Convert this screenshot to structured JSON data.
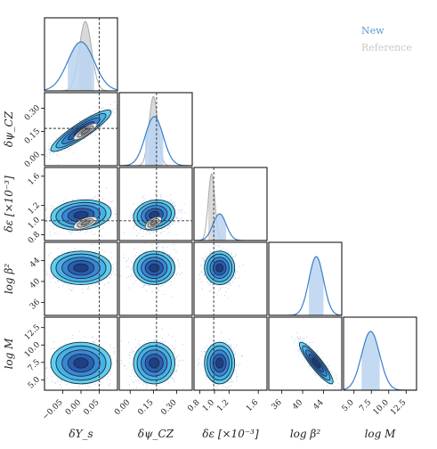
{
  "chart_data": {
    "type": "corner",
    "parameters": [
      {
        "label": "δY_s",
        "tick_values": [
          -0.05,
          0.0,
          0.05
        ],
        "tick_labels": [
          "−0.05",
          "0.00",
          "0.05"
        ],
        "range": [
          -0.1,
          0.1
        ],
        "truth": 0.05
      },
      {
        "label": "δψ_CZ",
        "tick_values": [
          0.0,
          0.15,
          0.3
        ],
        "tick_labels": [
          "0.00",
          "0.15",
          "0.30"
        ],
        "range": [
          -0.07,
          0.4
        ],
        "truth": 0.17
      },
      {
        "label": "δε [×10⁻³]",
        "tick_values": [
          0.8,
          1.0,
          1.2,
          1.6
        ],
        "tick_labels": [
          "0.8",
          "1.0",
          "1.2",
          "1.6"
        ],
        "range": [
          0.72,
          1.72
        ],
        "truth": 0.99
      },
      {
        "label": "log β²",
        "tick_values": [
          36,
          40,
          44
        ],
        "tick_labels": [
          "36",
          "40",
          "44"
        ],
        "range": [
          33.5,
          47.5
        ],
        "truth": null
      },
      {
        "label": "log M",
        "tick_values": [
          5.0,
          7.5,
          10.0,
          12.5
        ],
        "tick_labels": [
          "5.0",
          "7.5",
          "10.0",
          "12.5"
        ],
        "range": [
          3.5,
          14.0
        ],
        "truth": null
      }
    ],
    "y_tick_labels": {
      "1": [
        "0.00",
        "0.15",
        "0.30"
      ],
      "2": [
        "0.8",
        "1.0",
        "1.2",
        "1.6"
      ],
      "3": [
        "36",
        "40",
        "44"
      ],
      "4": [
        "5.0",
        "7.5",
        "10.0",
        "12.5"
      ]
    },
    "series": [
      {
        "name": "New",
        "color": "#3a7fc9",
        "fill": "#b9d3f0",
        "means": [
          0.0,
          0.155,
          1.07,
          42.6,
          7.4
        ],
        "sigmas": [
          0.036,
          0.058,
          0.09,
          1.4,
          1.3
        ],
        "correlations": {
          "1-0": 0.9,
          "2-0": 0.15,
          "2-1": 0.15,
          "4-3": -0.9
        }
      },
      {
        "name": "Reference",
        "color": "#aaaaaa",
        "fill": "#d9d9d9",
        "means": [
          0.012,
          0.15,
          0.96
        ],
        "sigmas": [
          0.017,
          0.028,
          0.045
        ],
        "correlations": {
          "1-0": 0.85,
          "2-0": 0.6,
          "2-1": 0.6
        }
      }
    ],
    "legend": {
      "placement": "top-right",
      "entries": [
        "New",
        "Reference"
      ]
    },
    "truth_color": "#333333"
  }
}
